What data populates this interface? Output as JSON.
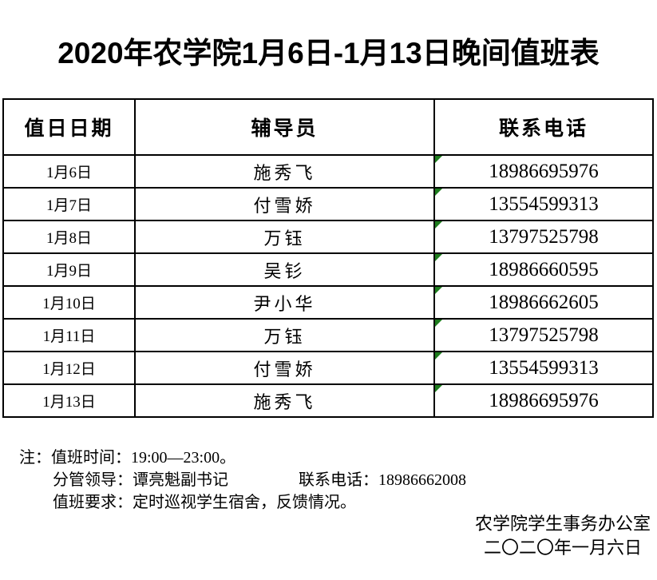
{
  "title": "2020年农学院1月6日-1月13日晚间值班表",
  "table": {
    "headers": {
      "date": "值日日期",
      "counselor": "辅导员",
      "phone": "联系电话"
    },
    "rows": [
      {
        "date": "1月6日",
        "counselor": "施秀飞",
        "phone": "18986695976"
      },
      {
        "date": "1月7日",
        "counselor": "付雪娇",
        "phone": "13554599313"
      },
      {
        "date": "1月8日",
        "counselor": "万钰",
        "phone": "13797525798"
      },
      {
        "date": "1月9日",
        "counselor": "吴钐",
        "phone": "18986660595"
      },
      {
        "date": "1月10日",
        "counselor": "尹小华",
        "phone": "18986662605"
      },
      {
        "date": "1月11日",
        "counselor": "万钰",
        "phone": "13797525798"
      },
      {
        "date": "1月12日",
        "counselor": "付雪娇",
        "phone": "13554599313"
      },
      {
        "date": "1月13日",
        "counselor": "施秀飞",
        "phone": "18986695976"
      }
    ]
  },
  "notes": {
    "prefix": "注：",
    "line1": "值班时间：19:00—23:00。",
    "line2_left": "分管领导：谭亮魁副书记",
    "line2_right": "联系电话：18986662008",
    "line3": "值班要求：定时巡视学生宿舍，反馈情况。"
  },
  "signature": {
    "org": "农学院学生事务办公室",
    "date": "二〇二〇年一月六日"
  },
  "colors": {
    "error_triangle_green": "#1e7d1e",
    "border": "#000000",
    "background": "#ffffff"
  }
}
